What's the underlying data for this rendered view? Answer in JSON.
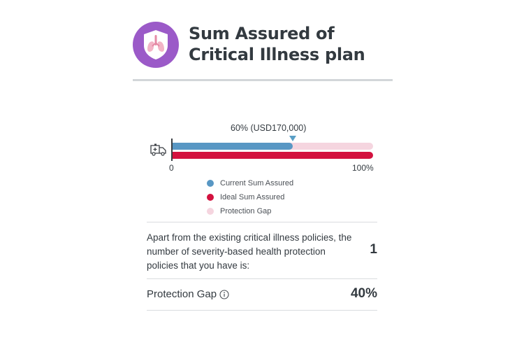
{
  "header": {
    "icon": "lungs-shield-icon",
    "title": "Sum Assured of Critical Illness plan"
  },
  "chart_data": {
    "type": "bar",
    "bar_label": "60% (USD170,000)",
    "x_ticks": [
      "0",
      "100%"
    ],
    "xlim": [
      0,
      100
    ],
    "series": [
      {
        "name": "Current Sum Assured",
        "value": 60,
        "color": "#5897c4"
      },
      {
        "name": "Ideal Sum Assured",
        "value": 100,
        "color": "#d3123f"
      },
      {
        "name": "Protection Gap",
        "value": 40,
        "color": "#f5d5df"
      }
    ],
    "legend_position": "bottom",
    "row_icon": "ambulance-icon"
  },
  "policies": {
    "text": "Apart from the existing critical illness policies, the number of severity-based health protection policies that you have is:",
    "count": "1"
  },
  "protection_gap": {
    "label": "Protection Gap",
    "value": "40%",
    "info_icon": "info-icon"
  },
  "colors": {
    "accent_purple": "#9b5ac8",
    "current": "#5897c4",
    "ideal": "#d3123f",
    "gap": "#f5d5df"
  }
}
